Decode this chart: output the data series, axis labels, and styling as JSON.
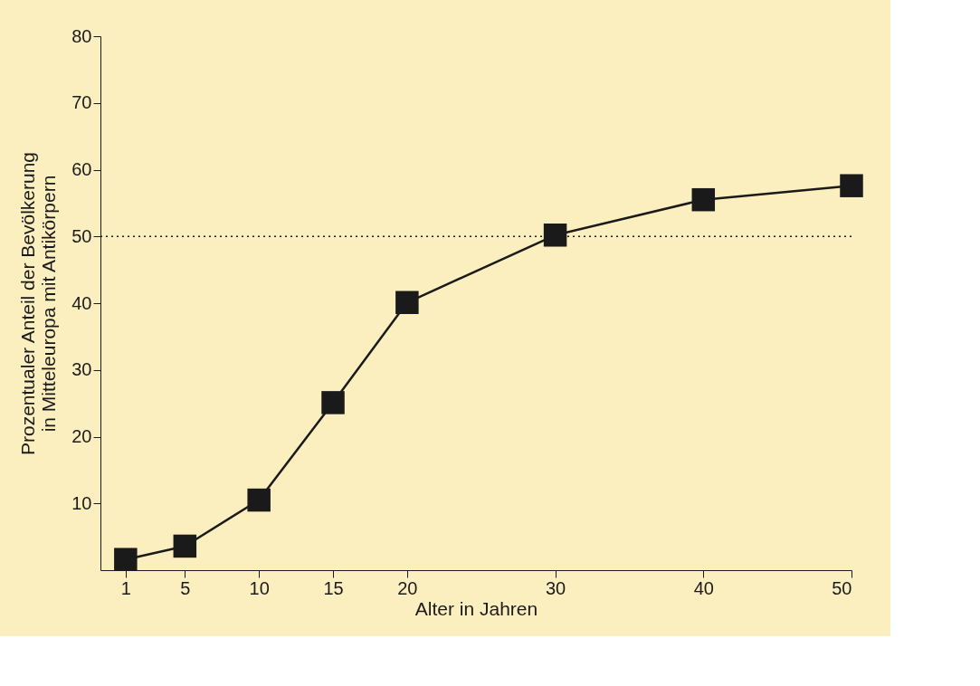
{
  "chart_data": {
    "type": "line",
    "xlabel": "Alter in Jahren",
    "ylabel": "Prozentualer Anteil der Bevölkerung in Mitteleuropa mit Antikörpern",
    "x": [
      1,
      5,
      10,
      15,
      20,
      30,
      40,
      50
    ],
    "series": [
      {
        "color": "#1a1a1a",
        "values": [
          1.6,
          3.6,
          10.5,
          25.1,
          40.1,
          50.2,
          55.5,
          57.6
        ]
      }
    ],
    "xlim": [
      -0.7,
      50
    ],
    "xticks": [
      1,
      5,
      10,
      15,
      20,
      30,
      40,
      50
    ],
    "ylim": [
      0,
      80
    ],
    "yticks": [
      10,
      20,
      30,
      40,
      50,
      60,
      70,
      80
    ],
    "ref_lines": [
      {
        "axis": "y",
        "value": 50,
        "line_style": "dotted",
        "color": "#1a1a1a"
      }
    ],
    "marker": "square",
    "line_style": "solid",
    "grid": false
  }
}
